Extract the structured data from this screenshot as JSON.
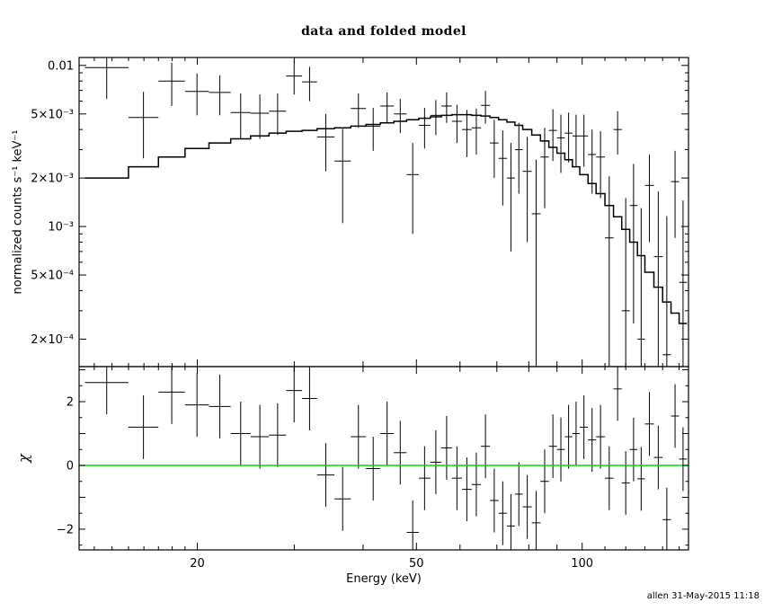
{
  "title": "data and folded model",
  "xlabel": "Energy (keV)",
  "footer": {
    "timestamp": "allen 31-May-2015 11:18"
  },
  "colors": {
    "background": "#ffffff",
    "axis": "#000000",
    "data": "#000000",
    "model": "#000000",
    "zero_line": "#00dd00"
  },
  "chart_data": [
    {
      "type": "scatter",
      "panel": "top",
      "title": "data and folded model",
      "xlabel": "Energy (keV)",
      "ylabel": "normalized counts s⁻¹ keV⁻¹",
      "x_scale": "log",
      "y_scale": "log",
      "xlim": [
        12.2,
        156
      ],
      "ylim": [
        0.000135,
        0.0112
      ],
      "grid": false,
      "legend": "none",
      "xticks": [
        {
          "v": 20,
          "label": "20"
        },
        {
          "v": 50,
          "label": "50"
        },
        {
          "v": 100,
          "label": "100"
        }
      ],
      "yticks": [
        {
          "v": 0.01,
          "label": "0.01"
        },
        {
          "v": 0.005,
          "label": "5×10⁻³"
        },
        {
          "v": 0.002,
          "label": "2×10⁻³"
        },
        {
          "v": 0.001,
          "label": "10⁻³"
        },
        {
          "v": 0.0005,
          "label": "5×10⁻⁴"
        },
        {
          "v": 0.0002,
          "label": "2×10⁻⁴"
        }
      ],
      "bin_edges": [
        12.5,
        15,
        17,
        19,
        21,
        23,
        25,
        27,
        29,
        31,
        33,
        35.5,
        38,
        40.5,
        43,
        45.5,
        48,
        50.5,
        53,
        55.5,
        58,
        60.5,
        63,
        65.5,
        68,
        70.5,
        73,
        75.5,
        78,
        81,
        84,
        87,
        90,
        93,
        96,
        99,
        102.5,
        106,
        110,
        114,
        118,
        122,
        126,
        130,
        135,
        140,
        145,
        150,
        155
      ],
      "data": [
        0.0097,
        0.00475,
        0.008,
        0.0069,
        0.0068,
        0.0051,
        0.00505,
        0.0052,
        0.0086,
        0.0079,
        0.0036,
        0.00255,
        0.0054,
        0.0042,
        0.0056,
        0.005,
        0.0021,
        0.00425,
        0.0049,
        0.0056,
        0.0045,
        0.004,
        0.0041,
        0.00565,
        0.0033,
        0.00265,
        0.002,
        0.003,
        0.0022,
        0.0012,
        0.0027,
        0.00395,
        0.00355,
        0.0038,
        0.00365,
        0.00365,
        0.0028,
        0.0027,
        0.00085,
        0.004,
        0.0003,
        0.00135,
        0.0002,
        0.0018,
        0.00065,
        0.00016,
        0.0019,
        0.00045
      ],
      "err": [
        0.0035,
        0.0021,
        0.0024,
        0.002,
        0.0019,
        0.0016,
        0.00155,
        0.0015,
        0.002,
        0.0019,
        0.0014,
        0.0015,
        0.0013,
        0.00125,
        0.0012,
        0.0012,
        0.0012,
        0.0012,
        0.0012,
        0.0012,
        0.0012,
        0.0013,
        0.0013,
        0.0013,
        0.0013,
        0.0013,
        0.0013,
        0.0014,
        0.0014,
        0.0014,
        0.0014,
        0.0014,
        0.0014,
        0.0013,
        0.0013,
        0.0013,
        0.0012,
        0.0012,
        0.0012,
        0.0012,
        0.0012,
        0.0011,
        0.0011,
        0.001,
        0.001,
        0.001,
        0.00105,
        0.001
      ],
      "model": [
        0.002,
        0.00235,
        0.0027,
        0.00305,
        0.0033,
        0.0035,
        0.00365,
        0.0038,
        0.0039,
        0.00395,
        0.00405,
        0.0041,
        0.0042,
        0.0043,
        0.0044,
        0.0045,
        0.0046,
        0.0047,
        0.0048,
        0.0049,
        0.00495,
        0.00495,
        0.0049,
        0.00485,
        0.00475,
        0.0046,
        0.00445,
        0.00425,
        0.004,
        0.0037,
        0.0034,
        0.0031,
        0.00285,
        0.0026,
        0.00235,
        0.0021,
        0.00185,
        0.0016,
        0.00135,
        0.00115,
        0.00096,
        0.0008,
        0.00066,
        0.00052,
        0.00042,
        0.00034,
        0.00029,
        0.00025
      ],
      "series": [
        {
          "name": "data",
          "style": "crosses-with-error-bars"
        },
        {
          "name": "folded model",
          "style": "step-line"
        }
      ]
    },
    {
      "type": "scatter",
      "panel": "bottom",
      "ylabel": "χ",
      "x_scale": "log",
      "y_scale": "linear",
      "x_shared_with_top": true,
      "xlim": [
        12.2,
        156
      ],
      "ylim": [
        -2.65,
        3.1
      ],
      "grid": false,
      "yticks": [
        {
          "v": 2,
          "label": "2"
        },
        {
          "v": 0,
          "label": "0"
        },
        {
          "v": -2,
          "label": "−2"
        }
      ],
      "zero_line": 0,
      "bin_edges": [
        12.5,
        15,
        17,
        19,
        21,
        23,
        25,
        27,
        29,
        31,
        33,
        35.5,
        38,
        40.5,
        43,
        45.5,
        48,
        50.5,
        53,
        55.5,
        58,
        60.5,
        63,
        65.5,
        68,
        70.5,
        73,
        75.5,
        78,
        81,
        84,
        87,
        90,
        93,
        96,
        99,
        102.5,
        106,
        110,
        114,
        118,
        122,
        126,
        130,
        135,
        140,
        145,
        150,
        155
      ],
      "chi": [
        2.6,
        1.2,
        2.3,
        1.9,
        1.85,
        1.0,
        0.9,
        0.95,
        2.35,
        2.1,
        -0.3,
        -1.05,
        0.9,
        -0.1,
        1.0,
        0.4,
        -2.1,
        -0.4,
        0.1,
        0.55,
        -0.4,
        -0.75,
        -0.6,
        0.6,
        -1.1,
        -1.5,
        -1.9,
        -0.9,
        -1.3,
        -1.8,
        -0.5,
        0.6,
        0.5,
        0.9,
        1.0,
        1.2,
        0.8,
        0.9,
        -0.4,
        2.4,
        -0.55,
        0.5,
        -0.42,
        1.3,
        0.25,
        -1.7,
        1.55,
        0.2
      ],
      "chi_err": 1,
      "series": [
        {
          "name": "chi residuals",
          "style": "crosses-with-error-bars"
        }
      ]
    }
  ]
}
